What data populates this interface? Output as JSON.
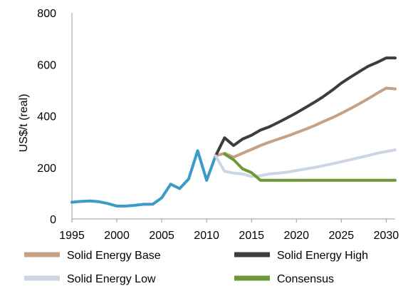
{
  "chart_data": {
    "type": "line",
    "title": "",
    "xlabel": "",
    "ylabel": "US$/t (real)",
    "xlim": [
      1995,
      2031
    ],
    "ylim": [
      0,
      800
    ],
    "x_ticks": [
      "1995",
      "2000",
      "2005",
      "2010",
      "2015",
      "2020",
      "2025",
      "2030"
    ],
    "y_ticks": [
      "0",
      "200",
      "400",
      "600",
      "800"
    ],
    "grid": false,
    "legend_position": "bottom",
    "series": [
      {
        "color": "#3a9bc7",
        "x": [
          1995,
          1996,
          1997,
          1998,
          1999,
          2000,
          2001,
          2002,
          2003,
          2004,
          2005,
          2006,
          2007,
          2008,
          2009,
          2010,
          2011
        ],
        "y": [
          65,
          68,
          70,
          67,
          60,
          50,
          50,
          53,
          57,
          57,
          82,
          135,
          118,
          155,
          265,
          150,
          245
        ]
      },
      {
        "name": "Solid Energy Base",
        "color": "#c5a186",
        "x": [
          2011,
          2012,
          2013,
          2014,
          2015,
          2016,
          2017,
          2018,
          2019,
          2020,
          2021,
          2022,
          2023,
          2024,
          2025,
          2026,
          2027,
          2028,
          2029,
          2030,
          2031
        ],
        "y": [
          245,
          255,
          240,
          255,
          270,
          285,
          298,
          310,
          322,
          335,
          348,
          362,
          378,
          393,
          410,
          428,
          447,
          467,
          488,
          508,
          505
        ]
      },
      {
        "name": "Solid Energy High",
        "color": "#3d3d3d",
        "x": [
          2011,
          2012,
          2013,
          2014,
          2015,
          2016,
          2017,
          2018,
          2019,
          2020,
          2021,
          2022,
          2023,
          2024,
          2025,
          2026,
          2027,
          2028,
          2029,
          2030,
          2031
        ],
        "y": [
          245,
          315,
          285,
          310,
          325,
          345,
          358,
          375,
          393,
          412,
          432,
          453,
          475,
          500,
          527,
          550,
          572,
          593,
          608,
          625,
          625
        ]
      },
      {
        "name": "Solid Energy Low",
        "color": "#cbd6e2",
        "x": [
          2011,
          2012,
          2013,
          2014,
          2015,
          2016,
          2017,
          2018,
          2019,
          2020,
          2021,
          2022,
          2023,
          2024,
          2025,
          2026,
          2027,
          2028,
          2029,
          2030,
          2031
        ],
        "y": [
          245,
          185,
          178,
          175,
          165,
          168,
          175,
          178,
          182,
          188,
          194,
          200,
          207,
          214,
          222,
          230,
          238,
          246,
          255,
          262,
          268
        ]
      },
      {
        "name": "Consensus",
        "color": "#6b9a35",
        "x": [
          2012,
          2013,
          2014,
          2015,
          2016,
          2017,
          2018,
          2019,
          2020,
          2021,
          2022,
          2023,
          2024,
          2025,
          2026,
          2027,
          2028,
          2029,
          2030,
          2031
        ],
        "y": [
          252,
          230,
          195,
          180,
          150,
          150,
          150,
          150,
          150,
          150,
          150,
          150,
          150,
          150,
          150,
          150,
          150,
          150,
          150,
          150
        ]
      }
    ]
  }
}
